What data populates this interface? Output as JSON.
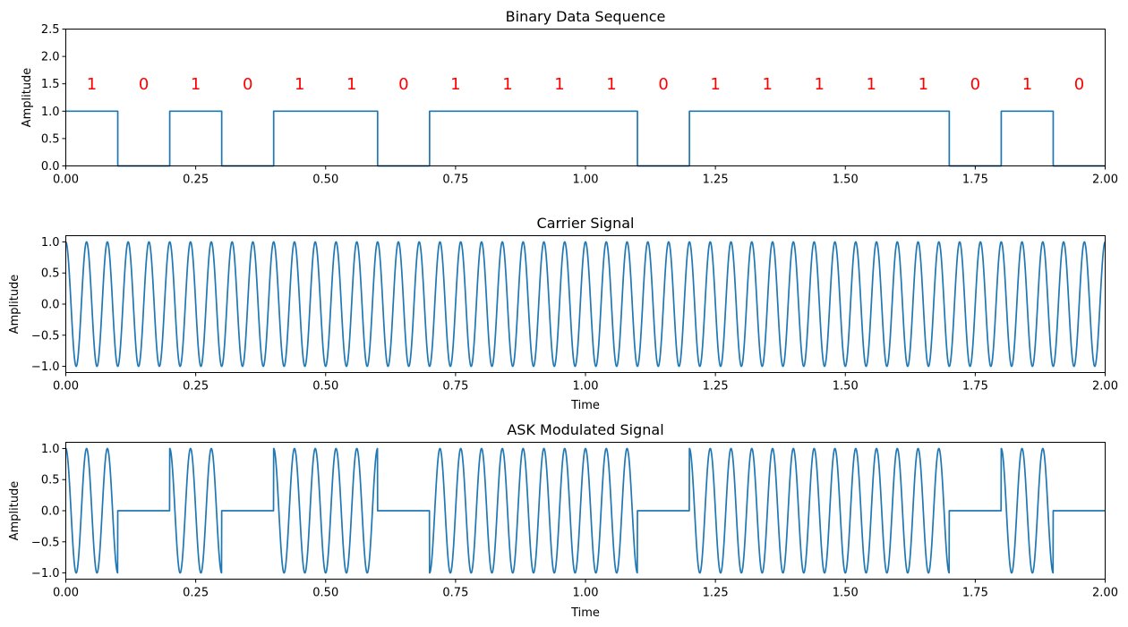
{
  "chart_data": [
    {
      "type": "line",
      "title": "Binary Data Sequence",
      "xlabel": "",
      "ylabel": "Amplitude",
      "xlim": [
        0,
        2
      ],
      "ylim": [
        0,
        2.5
      ],
      "xticks": [
        "0.00",
        "0.25",
        "0.50",
        "0.75",
        "1.00",
        "1.25",
        "1.50",
        "1.75",
        "2.00"
      ],
      "yticks": [
        "0.0",
        "0.5",
        "1.0",
        "1.5",
        "2.0",
        "2.5"
      ],
      "bit_duration": 0.1,
      "bits": [
        1,
        0,
        1,
        0,
        1,
        1,
        0,
        1,
        1,
        1,
        1,
        0,
        1,
        1,
        1,
        1,
        1,
        0,
        1,
        0
      ],
      "annotations": [
        "1",
        "0",
        "1",
        "0",
        "1",
        "1",
        "0",
        "1",
        "1",
        "1",
        "1",
        "0",
        "1",
        "1",
        "1",
        "1",
        "1",
        "0",
        "1",
        "0"
      ],
      "annotation_y": 1.5,
      "annotation_color": "#ff0000",
      "color": "#1f77b4",
      "grid": false
    },
    {
      "type": "line",
      "title": "Carrier Signal",
      "xlabel": "Time",
      "ylabel": "Amplitude",
      "xlim": [
        0,
        2
      ],
      "ylim": [
        -1.1,
        1.1
      ],
      "xticks": [
        "0.00",
        "0.25",
        "0.50",
        "0.75",
        "1.00",
        "1.25",
        "1.50",
        "1.75",
        "2.00"
      ],
      "yticks": [
        "1.0",
        "0.5",
        "0.0",
        "−0.5",
        "−1.0"
      ],
      "function": "cos",
      "frequency": 25,
      "amplitude": 1,
      "color": "#1f77b4",
      "grid": false
    },
    {
      "type": "line",
      "title": "ASK Modulated Signal",
      "xlabel": "Time",
      "ylabel": "Amplitude",
      "xlim": [
        0,
        2
      ],
      "ylim": [
        -1.1,
        1.1
      ],
      "xticks": [
        "0.00",
        "0.25",
        "0.50",
        "0.75",
        "1.00",
        "1.25",
        "1.50",
        "1.75",
        "2.00"
      ],
      "yticks": [
        "1.0",
        "0.5",
        "0.0",
        "−0.5",
        "−1.0"
      ],
      "function": "bits * cos",
      "frequency": 25,
      "amplitude": 1,
      "color": "#1f77b4",
      "grid": false
    }
  ]
}
